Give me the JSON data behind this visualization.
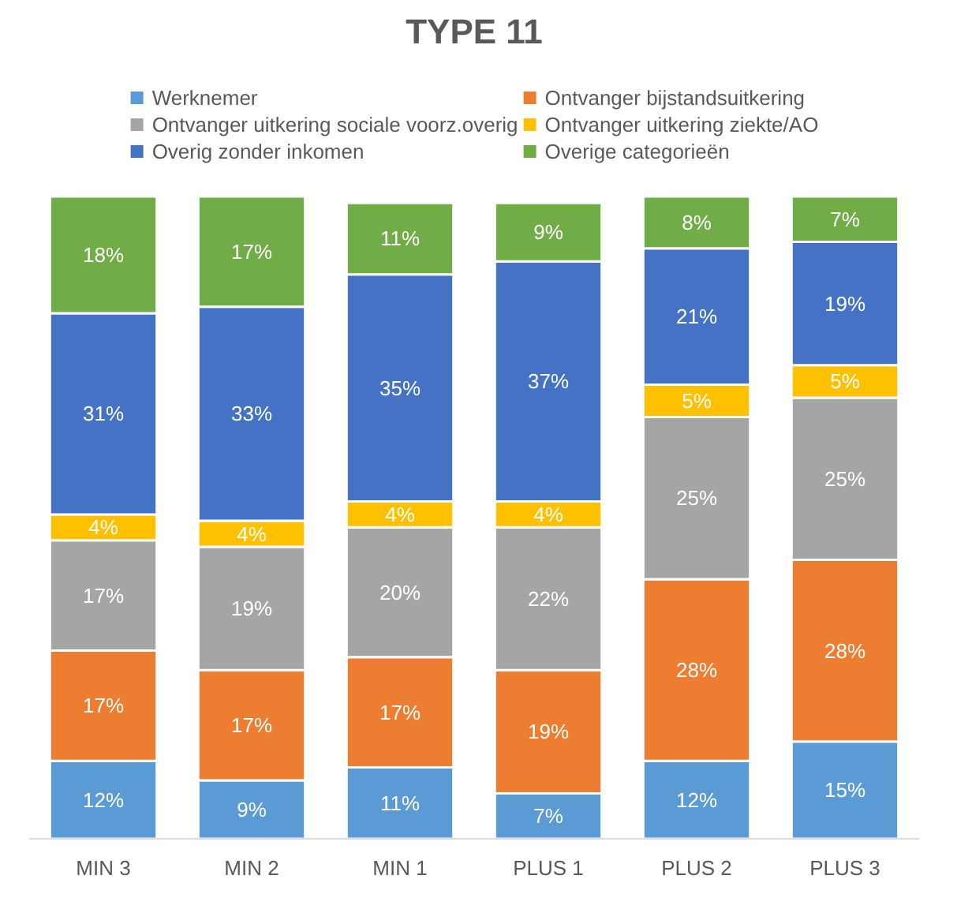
{
  "chart_data": {
    "type": "bar",
    "title": "TYPE 11",
    "stacked": true,
    "legend": "top",
    "categories": [
      "MIN 3",
      "MIN 2",
      "MIN 1",
      "PLUS 1",
      "PLUS 2",
      "PLUS 3"
    ],
    "series": [
      {
        "name": "Werknemer",
        "color": "#5b9bd5",
        "values": [
          12,
          9,
          11,
          7,
          12,
          15
        ],
        "value_labels": [
          "12%",
          "9%",
          "11%",
          "7%",
          "12%",
          "15%"
        ]
      },
      {
        "name": "Ontvanger bijstandsuitkering",
        "color": "#ed7d31",
        "values": [
          17,
          17,
          17,
          19,
          28,
          28
        ],
        "value_labels": [
          "17%",
          "17%",
          "17%",
          "19%",
          "28%",
          "28%"
        ]
      },
      {
        "name": "Ontvanger uitkering sociale voorz.overig",
        "color": "#a5a5a5",
        "values": [
          17,
          19,
          20,
          22,
          25,
          25
        ],
        "value_labels": [
          "17%",
          "19%",
          "20%",
          "22%",
          "25%",
          "25%"
        ]
      },
      {
        "name": "Ontvanger uitkering ziekte/AO",
        "color": "#ffc000",
        "values": [
          4,
          4,
          4,
          4,
          5,
          5
        ],
        "value_labels": [
          "4%",
          "4%",
          "4%",
          "4%",
          "5%",
          "5%"
        ]
      },
      {
        "name": "Overig zonder inkomen",
        "color": "#4472c4",
        "values": [
          31,
          33,
          35,
          37,
          21,
          19
        ],
        "value_labels": [
          "31%",
          "33%",
          "35%",
          "37%",
          "21%",
          "19%"
        ]
      },
      {
        "name": "Overige categorieën",
        "color": "#70ad47",
        "values": [
          18,
          17,
          11,
          9,
          8,
          7
        ],
        "value_labels": [
          "18%",
          "17%",
          "11%",
          "9%",
          "8%",
          "7%"
        ]
      }
    ]
  }
}
